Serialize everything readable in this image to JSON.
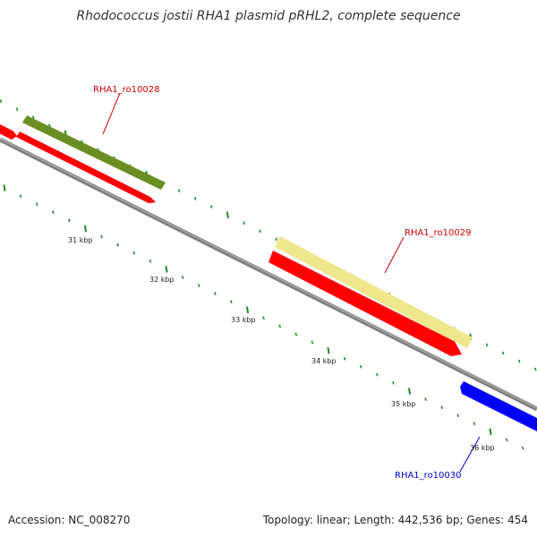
{
  "title": "Rhodococcus jostii RHA1 plasmid pRHL2, complete sequence",
  "footer": {
    "accession": "Accession: NC_008270",
    "summary": "Topology: linear; Length: 442,536 bp; Genes: 454"
  },
  "scale_labels": [
    "31 kbp",
    "32 kbp",
    "33 kbp",
    "34 kbp",
    "35 kbp",
    "36 kbp"
  ],
  "genes": [
    {
      "label": "RHA1_ro10028",
      "color": "#6b8e23",
      "strand": "forward"
    },
    {
      "label": "RHA1_ro10029",
      "color": "#f0e68c",
      "strand": "forward"
    },
    {
      "label": "RHA1_ro10030",
      "color": "#0000ff",
      "strand": "reverse"
    }
  ],
  "colors": {
    "cds": "#ff0000",
    "backbone": "#808080",
    "ticks": "#228b22",
    "forward_label": "#cc0000",
    "reverse_label": "#0000cc"
  }
}
